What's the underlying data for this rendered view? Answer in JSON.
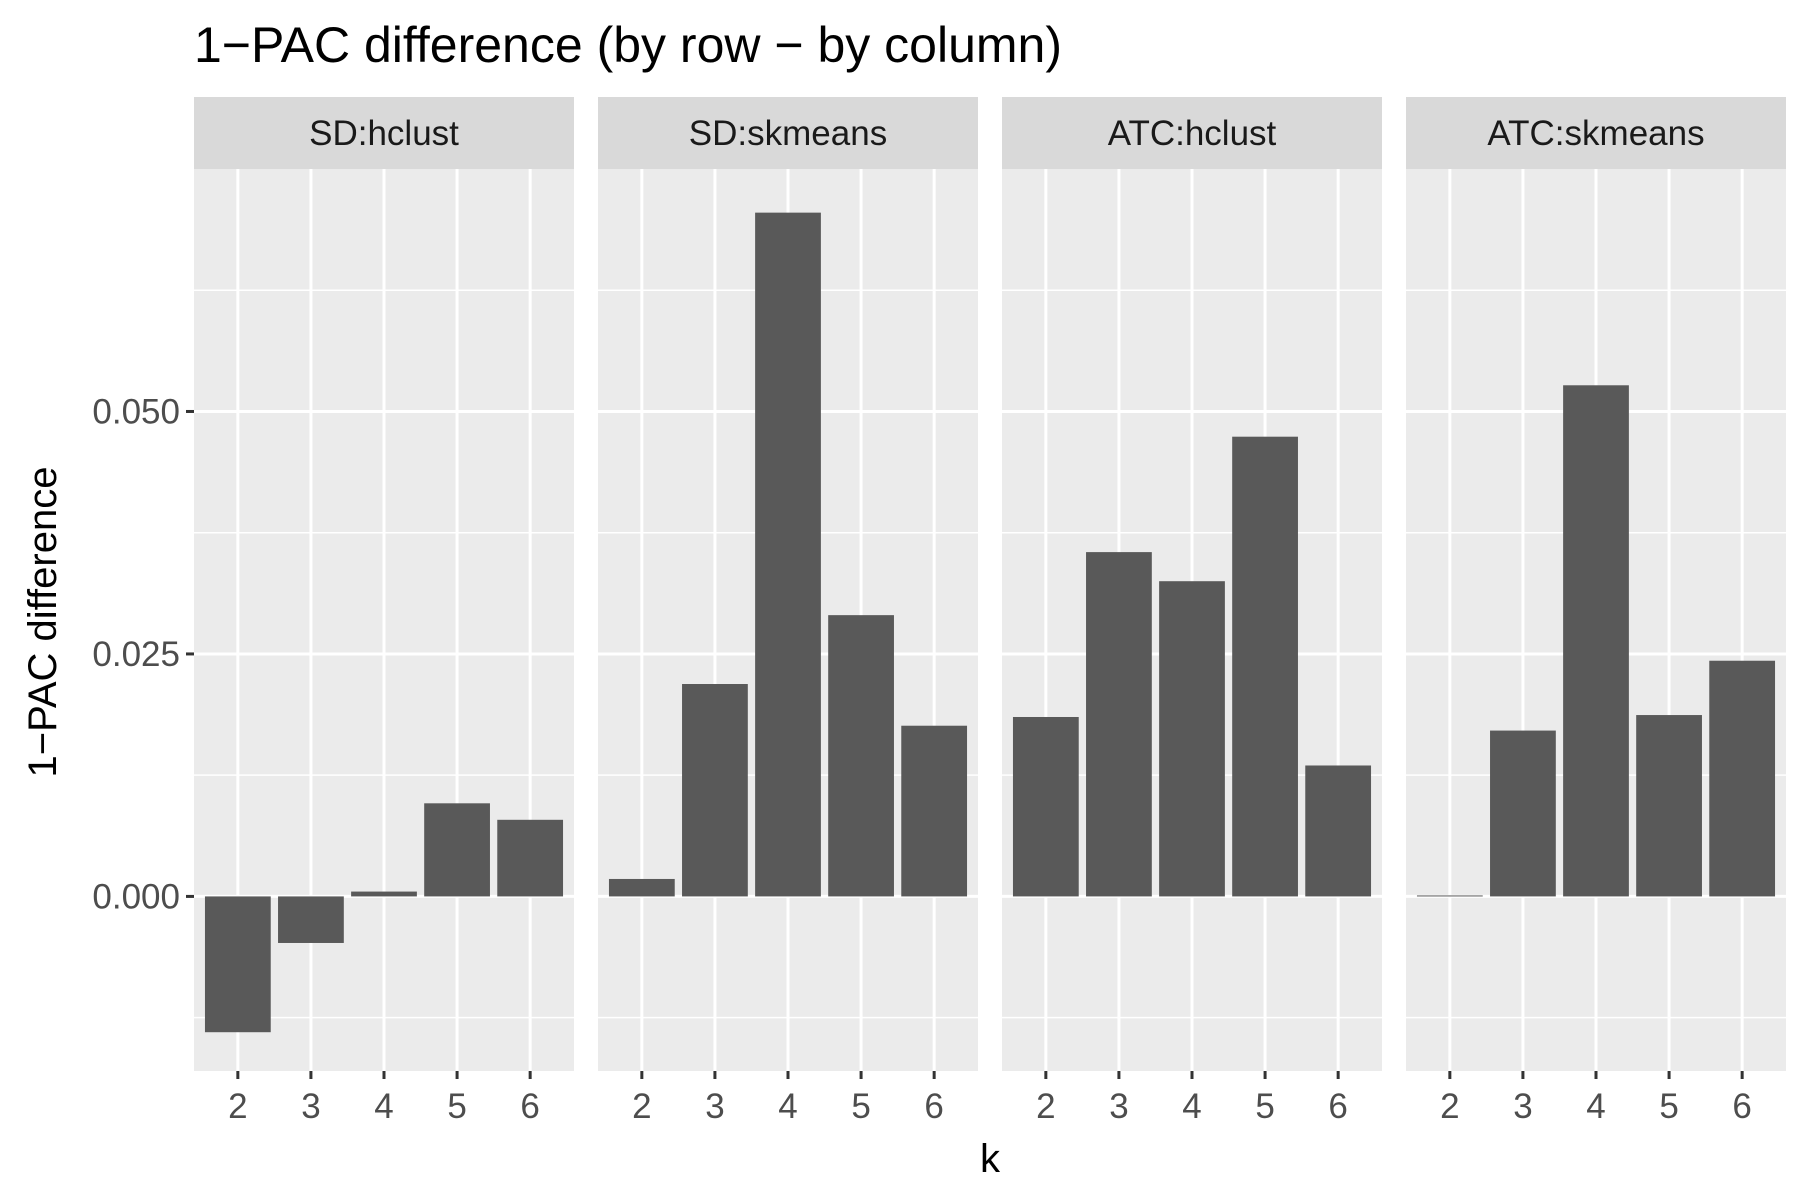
{
  "chart_data": {
    "type": "bar",
    "title": "1−PAC difference (by row − by column)",
    "xlabel": "k",
    "ylabel": "1−PAC difference",
    "ylim": [
      -0.018,
      0.075
    ],
    "y_ticks": [
      0.0,
      0.025,
      0.05
    ],
    "y_tick_labels": [
      "0.000",
      "0.025",
      "0.050"
    ],
    "categories": [
      "2",
      "3",
      "4",
      "5",
      "6"
    ],
    "grid": true,
    "bar_color": "#595959",
    "panel_background": "#ebebeb",
    "strip_background": "#d9d9d9",
    "facets": [
      {
        "label": "SD:hclust",
        "values": [
          -0.014,
          -0.0048,
          0.0005,
          0.0096,
          0.0079
        ]
      },
      {
        "label": "SD:skmeans",
        "values": [
          0.0018,
          0.0219,
          0.0705,
          0.029,
          0.0176
        ]
      },
      {
        "label": "ATC:hclust",
        "values": [
          0.0185,
          0.0355,
          0.0325,
          0.0474,
          0.0135
        ]
      },
      {
        "label": "ATC:skmeans",
        "values": [
          0.0001,
          0.0171,
          0.0527,
          0.0187,
          0.0243
        ]
      }
    ]
  }
}
